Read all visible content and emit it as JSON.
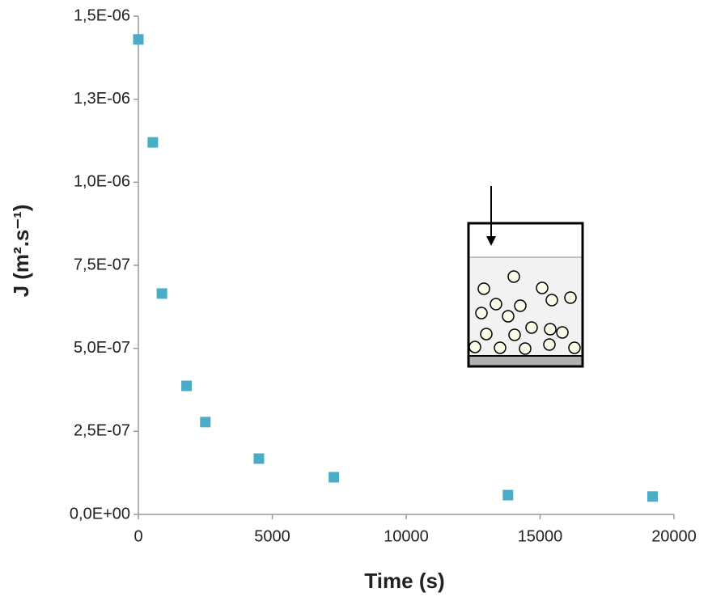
{
  "chart_data": {
    "type": "scatter",
    "x_label": "Time (s)",
    "y_label": "J (m².s⁻¹)",
    "x": [
      0,
      540,
      880,
      1800,
      2500,
      4500,
      7300,
      13800,
      19200
    ],
    "values": [
      1.43e-06,
      1.12e-06,
      6.65e-07,
      3.87e-07,
      2.78e-07,
      1.68e-07,
      1.12e-07,
      5.8e-08,
      5.4e-08
    ],
    "color": "#4bacc6",
    "xlim": [
      0,
      20000
    ],
    "xticks": [
      0,
      5000,
      10000,
      15000,
      20000
    ],
    "ylim": [
      0,
      1.5e-06
    ],
    "yticks": [
      {
        "value": 0,
        "label": "0,0E+00"
      },
      {
        "value": 2.5e-07,
        "label": "2,5E-07"
      },
      {
        "value": 5e-07,
        "label": "5,0E-07"
      },
      {
        "value": 7.5e-07,
        "label": "7,5E-07"
      },
      {
        "value": 1e-06,
        "label": "1,0E-06"
      },
      {
        "value": 1.25e-06,
        "label": "1,3E-06"
      },
      {
        "value": 1.5e-06,
        "label": "1,5E-06"
      }
    ],
    "grid": false
  }
}
